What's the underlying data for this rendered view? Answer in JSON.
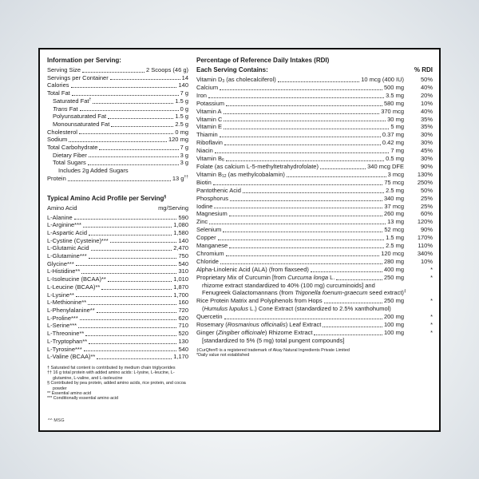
{
  "page": {
    "bottom_note": "^^ MSG"
  },
  "left": {
    "info_title": "Information per Serving:",
    "info_rows": [
      {
        "name": "Serving Size",
        "value": "2 Scoops (46 g)"
      },
      {
        "name": "Servings per Container",
        "value": "14"
      },
      {
        "name": "Calories",
        "value": "140"
      },
      {
        "name": "Total Fat",
        "value": "7 g"
      },
      {
        "name": [
          {
            "t": "Saturated Fat"
          },
          {
            "t": "†",
            "s": "sup"
          }
        ],
        "value": "1.5 g",
        "indent": 1
      },
      {
        "name": [
          {
            "t": "Trans",
            "s": "it"
          },
          {
            "t": " Fat"
          }
        ],
        "value": "0 g",
        "indent": 1
      },
      {
        "name": "Polyunsaturated Fat",
        "value": "1.5 g",
        "indent": 1
      },
      {
        "name": "Monounsaturated Fat",
        "value": "2.5 g",
        "indent": 1
      },
      {
        "name": "Cholesterol",
        "value": "0 mg"
      },
      {
        "name": "Sodium",
        "value": "120 mg"
      },
      {
        "name": "Total Carbohydrate",
        "value": "7 g"
      },
      {
        "name": "Dietary Fiber",
        "value": "3 g",
        "indent": 1
      },
      {
        "name": "Total Sugars",
        "value": "3 g",
        "indent": 1
      },
      {
        "name": "Includes 2g Added Sugars",
        "noleader": true,
        "indent": 2
      },
      {
        "name": "Protein",
        "value": [
          {
            "t": "13 g"
          },
          {
            "t": "††",
            "s": "sup"
          }
        ]
      }
    ],
    "amino_title": [
      {
        "t": "Typical Amino Acid Profile per Serving"
      },
      {
        "t": "§",
        "s": "sup"
      }
    ],
    "amino_header": {
      "name": "Amino Acid",
      "value": "mg/Serving"
    },
    "amino_rows": [
      {
        "name": "L-Alanine",
        "value": "590"
      },
      {
        "name": "L-Arginine***",
        "value": "1,080"
      },
      {
        "name": "L-Aspartic Acid",
        "value": "1,580"
      },
      {
        "name": "L-Cystine (Cysteine)***",
        "value": "140"
      },
      {
        "name": "L-Glutamic Acid",
        "value": "2,470"
      },
      {
        "name": "L-Glutamine***",
        "value": "750"
      },
      {
        "name": "Glycine***",
        "value": "540"
      },
      {
        "name": "L-Histidine**",
        "value": "310"
      },
      {
        "name": "L-Isoleucine (BCAA)**",
        "value": "1,010"
      },
      {
        "name": "L-Leucine (BCAA)**",
        "value": "1,870"
      },
      {
        "name": "L-Lysine**",
        "value": "1,700"
      },
      {
        "name": "L-Methionine**",
        "value": "160"
      },
      {
        "name": "L-Phenylalanine**",
        "value": "720"
      },
      {
        "name": "L-Proline***",
        "value": "620"
      },
      {
        "name": "L-Serine***",
        "value": "710"
      },
      {
        "name": "L-Threonine**",
        "value": "520"
      },
      {
        "name": "L-Tryptophan**",
        "value": "130"
      },
      {
        "name": "L-Tyrosine***",
        "value": "540"
      },
      {
        "name": "L-Valine (BCAA)**",
        "value": "1,170"
      }
    ],
    "footnotes": [
      "† Saturated fat content is contributed by medium chain triglycerides",
      "†† 16 g total protein with added amino acids: L-lysine, L-leucine, L-glutamine, L-valine, and L-isoleucine",
      "§ Contributed by pea protein, added amino acids, rice protein, and cocoa powder",
      "** Essential amino acid",
      "*** Conditionally essential amino acid"
    ]
  },
  "right": {
    "title": "Percentage of Reference Daily Intakes (RDI)",
    "subtitle": "Each Serving Contains:",
    "rdi_col": "% RDI",
    "rows": [
      {
        "name": [
          {
            "t": "Vitamin D"
          },
          {
            "t": "3",
            "s": "sub"
          },
          {
            "t": " (as cholecalciferol)"
          }
        ],
        "amount": "10 mcg (400 IU)",
        "rdi": "50%"
      },
      {
        "name": "Calcium",
        "amount": "500 mg",
        "rdi": "40%"
      },
      {
        "name": "Iron",
        "amount": "3.5 mg",
        "rdi": "20%"
      },
      {
        "name": "Potassium",
        "amount": "580 mg",
        "rdi": "10%"
      },
      {
        "name": "Vitamin A",
        "amount": "370 mcg",
        "rdi": "40%"
      },
      {
        "name": "Vitamin C",
        "amount": "30 mg",
        "rdi": "35%"
      },
      {
        "name": "Vitamin E",
        "amount": "5 mg",
        "rdi": "35%"
      },
      {
        "name": "Thiamin",
        "amount": "0.37 mg",
        "rdi": "30%"
      },
      {
        "name": "Riboflavin",
        "amount": "0.42 mg",
        "rdi": "30%"
      },
      {
        "name": "Niacin",
        "amount": "7 mg",
        "rdi": "45%"
      },
      {
        "name": [
          {
            "t": "Vitamin B"
          },
          {
            "t": "6",
            "s": "sub"
          }
        ],
        "amount": "0.5 mg",
        "rdi": "30%"
      },
      {
        "name": "Folate (as calcium L-5-methyltetrahydrofolate)",
        "amount": "340 mcg DFE",
        "rdi": "90%"
      },
      {
        "name": [
          {
            "t": "Vitamin B"
          },
          {
            "t": "12",
            "s": "sub"
          },
          {
            "t": " (as methylcobalamin)"
          }
        ],
        "amount": "3 mcg",
        "rdi": "130%"
      },
      {
        "name": "Biotin",
        "amount": "75 mcg",
        "rdi": "250%"
      },
      {
        "name": "Pantothenic Acid",
        "amount": "2.5 mg",
        "rdi": "50%"
      },
      {
        "name": "Phosphorus",
        "amount": "340 mg",
        "rdi": "25%"
      },
      {
        "name": "Iodine",
        "amount": "37 mcg",
        "rdi": "25%"
      },
      {
        "name": "Magnesium",
        "amount": "260 mg",
        "rdi": "60%"
      },
      {
        "name": "Zinc",
        "amount": "13 mg",
        "rdi": "120%"
      },
      {
        "name": "Selenium",
        "amount": "52 mcg",
        "rdi": "90%"
      },
      {
        "name": "Copper",
        "amount": "1.5 mg",
        "rdi": "170%"
      },
      {
        "name": "Manganese",
        "amount": "2.5 mg",
        "rdi": "110%"
      },
      {
        "name": "Chromium",
        "amount": "120 mcg",
        "rdi": "340%"
      },
      {
        "name": "Chloride",
        "amount": "280 mg",
        "rdi": "10%"
      },
      {
        "name": "Alpha-Linolenic Acid (ALA) (from flaxseed)",
        "amount": "400 mg",
        "rdi": "*"
      },
      {
        "name": [
          {
            "t": "Proprietary Mix of Curcumin [from "
          },
          {
            "t": "Curcuma longa",
            "s": "it"
          },
          {
            "t": " L."
          }
        ],
        "amount": "250 mg",
        "rdi": "*"
      },
      {
        "name": "rhizome extract standardized to 40% (100 mg) curcuminoids] and",
        "noleader": true,
        "indent": 1
      },
      {
        "name": [
          {
            "t": "Fenugreek Galactomannans (from "
          },
          {
            "t": "Trigonella foenum-graecum",
            "s": "it"
          },
          {
            "t": " seed extract)"
          },
          {
            "t": "‡",
            "s": "sup"
          }
        ],
        "noleader": true,
        "indent": 1
      },
      {
        "name": "Rice Protein Matrix and Polyphenols from Hops",
        "amount": "250 mg",
        "rdi": "*"
      },
      {
        "name": [
          {
            "t": "("
          },
          {
            "t": "Humulus lupulus",
            "s": "it"
          },
          {
            "t": " L.) Cone Extract (standardized to 2.5% xanthohumol)"
          }
        ],
        "noleader": true,
        "indent": 1
      },
      {
        "name": "Quercetin",
        "amount": "200 mg",
        "rdi": "*"
      },
      {
        "name": [
          {
            "t": "Rosemary ("
          },
          {
            "t": "Rosmarinus officinalis",
            "s": "it"
          },
          {
            "t": ") Leaf Extract"
          }
        ],
        "amount": "100 mg",
        "rdi": "*"
      },
      {
        "name": [
          {
            "t": "Ginger ("
          },
          {
            "t": "Zingiber officinale",
            "s": "it"
          },
          {
            "t": ") Rhizome Extract"
          }
        ],
        "amount": "100 mg",
        "rdi": "*"
      },
      {
        "name": "[standardized to 5% (5 mg) total pungent compounds]",
        "noleader": true,
        "indent": 1
      }
    ],
    "footnotes": [
      "‡CurQfen® is a registered trademark of Akay Natural Ingredients Private Limited",
      "*Daily value not established"
    ]
  }
}
